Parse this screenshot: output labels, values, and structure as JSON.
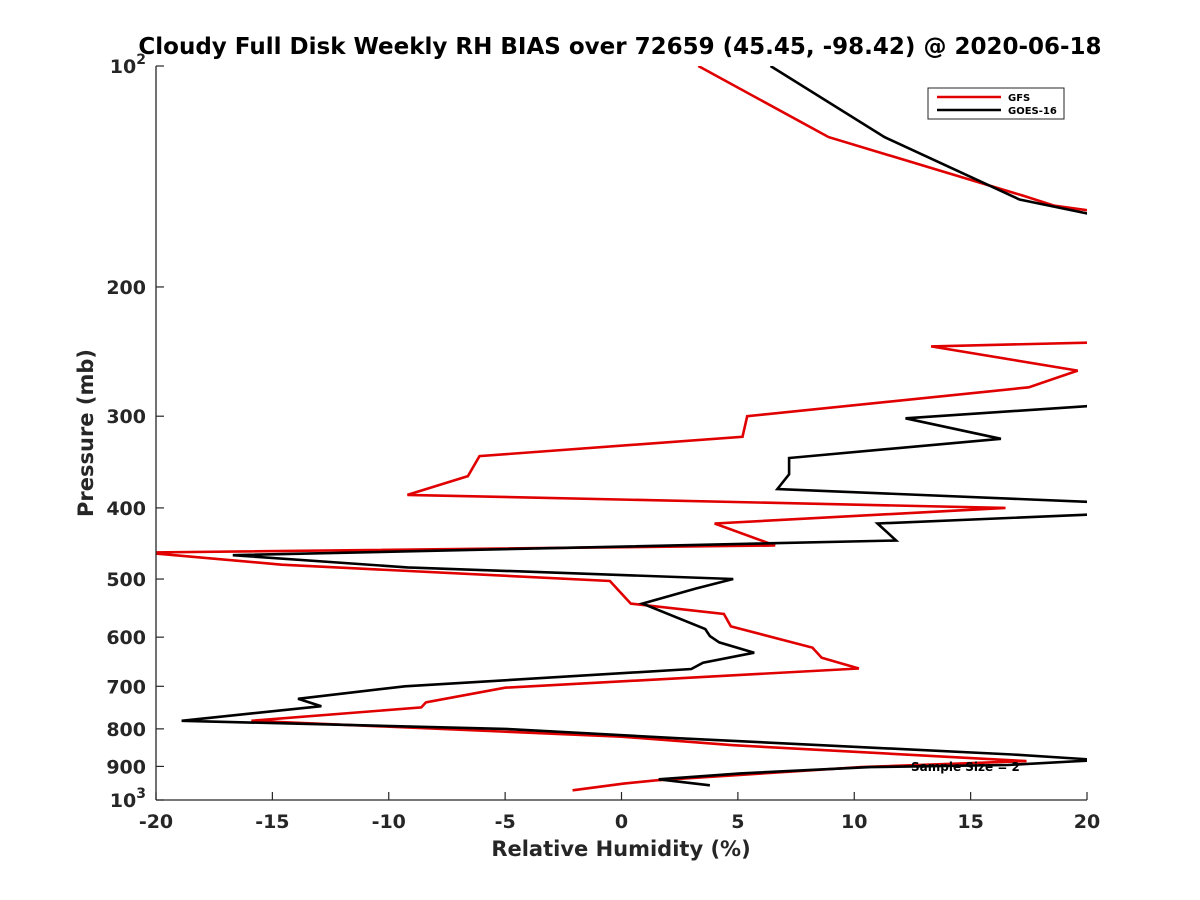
{
  "chart_data": {
    "type": "line",
    "title": "Cloudy Full Disk Weekly RH BIAS over 72659 (45.45, -98.42) @ 2020-06-18",
    "xlabel": "Relative Humidity (%)",
    "ylabel": "Pressure (mb)",
    "xlim": [
      -20,
      20
    ],
    "ylim": [
      100,
      1000
    ],
    "y_scale": "log",
    "y_reversed": true,
    "grid": false,
    "legend_position": "top-right",
    "x_ticks": [
      "-20",
      "-15",
      "-10",
      "-5",
      "0",
      "5",
      "10",
      "15",
      "20"
    ],
    "x_tick_values": [
      -20,
      -15,
      -10,
      -5,
      0,
      5,
      10,
      15,
      20
    ],
    "y_ticks": [
      {
        "value": 100,
        "base": "10",
        "exp": "2"
      },
      {
        "value": 200,
        "label": "200"
      },
      {
        "value": 300,
        "label": "300"
      },
      {
        "value": 400,
        "label": "400"
      },
      {
        "value": 500,
        "label": "500"
      },
      {
        "value": 600,
        "label": "600"
      },
      {
        "value": 700,
        "label": "700"
      },
      {
        "value": 800,
        "label": "800"
      },
      {
        "value": 900,
        "label": "900"
      },
      {
        "value": 1000,
        "base": "10",
        "exp": "3"
      }
    ],
    "annotation": "Sample Size = 2",
    "series": [
      {
        "name": "GFS",
        "color": "#e00000",
        "points": [
          [
            3.3,
            100
          ],
          [
            8.9,
            125
          ],
          [
            17.2,
            150
          ],
          [
            18.6,
            155
          ],
          [
            20.5,
            158
          ],
          [
            20.5,
            238
          ],
          [
            13.3,
            241
          ],
          [
            19.6,
            260
          ],
          [
            17.5,
            274
          ],
          [
            5.4,
            300
          ],
          [
            5.2,
            320
          ],
          [
            -6.1,
            340
          ],
          [
            -6.6,
            362
          ],
          [
            -9.2,
            384
          ],
          [
            16.5,
            400
          ],
          [
            4.0,
            420
          ],
          [
            6.6,
            450
          ],
          [
            -20.5,
            460
          ],
          [
            -14.6,
            478
          ],
          [
            -0.5,
            503
          ],
          [
            0.4,
            540
          ],
          [
            4.4,
            558
          ],
          [
            4.7,
            580
          ],
          [
            8.2,
            620
          ],
          [
            8.6,
            640
          ],
          [
            10.2,
            662
          ],
          [
            -5.0,
            703
          ],
          [
            -8.4,
            736
          ],
          [
            -8.6,
            748
          ],
          [
            -15.9,
            780
          ],
          [
            0.0,
            820
          ],
          [
            4.8,
            842
          ],
          [
            17.4,
            885
          ],
          [
            10.3,
            902
          ],
          [
            1.5,
            940
          ],
          [
            0.1,
            950
          ],
          [
            -2.1,
            970
          ]
        ]
      },
      {
        "name": "GOES-16",
        "color": "#000000",
        "points": [
          [
            6.4,
            100
          ],
          [
            11.3,
            125
          ],
          [
            17.1,
            152
          ],
          [
            20.5,
            160
          ],
          [
            20.5,
            290
          ],
          [
            12.2,
            302
          ],
          [
            16.3,
            322
          ],
          [
            7.2,
            342
          ],
          [
            7.2,
            360
          ],
          [
            6.7,
            377
          ],
          [
            20.5,
            393
          ],
          [
            20.5,
            408
          ],
          [
            11.0,
            420
          ],
          [
            11.8,
            443
          ],
          [
            -16.7,
            464
          ],
          [
            -9.2,
            482
          ],
          [
            4.8,
            500
          ],
          [
            3.2,
            515
          ],
          [
            0.9,
            540
          ],
          [
            3.6,
            585
          ],
          [
            3.8,
            598
          ],
          [
            4.2,
            610
          ],
          [
            5.7,
            630
          ],
          [
            3.5,
            650
          ],
          [
            3.0,
            663
          ],
          [
            -9.3,
            700
          ],
          [
            -13.9,
            728
          ],
          [
            -12.9,
            745
          ],
          [
            -15.9,
            762
          ],
          [
            -18.9,
            780
          ],
          [
            -5.0,
            800
          ],
          [
            2.5,
            824
          ],
          [
            16.8,
            867
          ],
          [
            20.5,
            882
          ],
          [
            16.6,
            896
          ],
          [
            10.7,
            902
          ],
          [
            5.1,
            920
          ],
          [
            1.6,
            937
          ],
          [
            3.8,
            955
          ]
        ]
      }
    ]
  }
}
